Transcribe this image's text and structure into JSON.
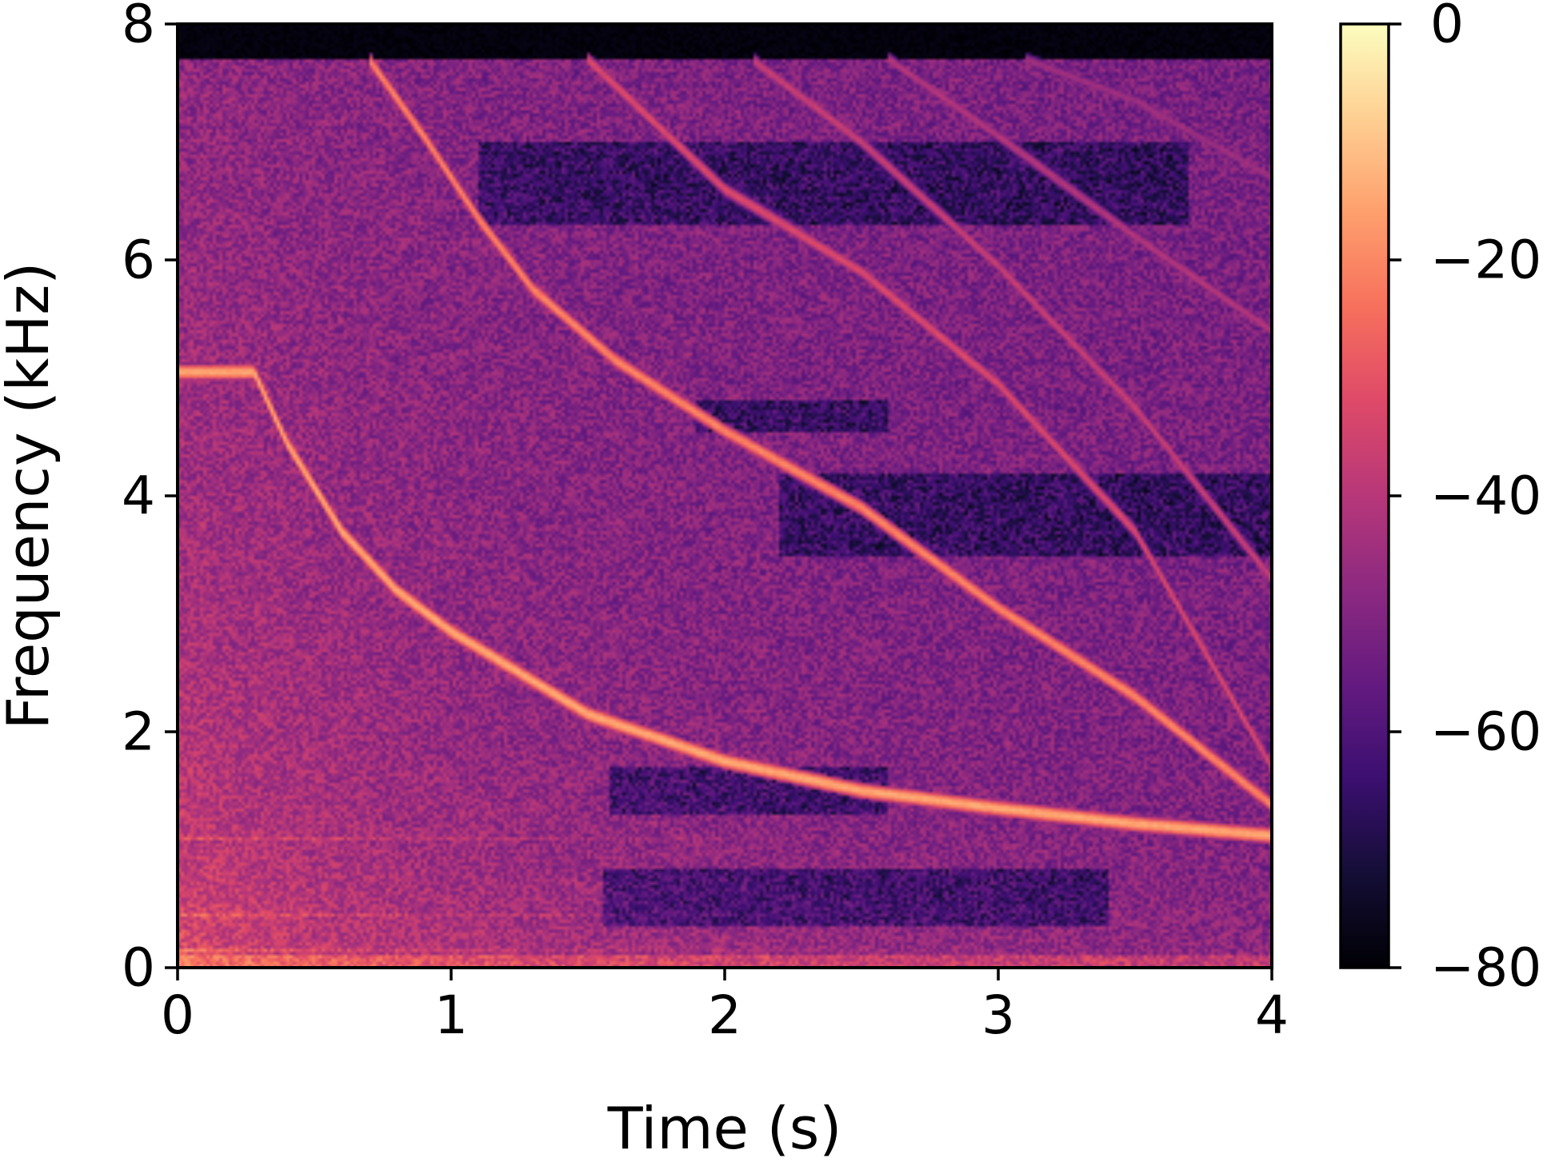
{
  "chart_data": {
    "type": "heatmap",
    "subtype": "spectrogram",
    "title": "",
    "xlabel": "Time (s)",
    "ylabel": "Frequency (kHz)",
    "xlim": [
      0,
      4
    ],
    "ylim": [
      0,
      8
    ],
    "x_ticks": [
      0,
      1,
      2,
      3,
      4
    ],
    "x_tick_labels": [
      "0",
      "1",
      "2",
      "3",
      "4"
    ],
    "y_ticks": [
      0,
      2,
      4,
      6,
      8
    ],
    "y_tick_labels": [
      "0",
      "2",
      "4",
      "6",
      "8"
    ],
    "colormap": "magma",
    "colorbar": {
      "range": [
        -80,
        0
      ],
      "ticks": [
        0,
        -20,
        -40,
        -60,
        -80
      ],
      "tick_labels": [
        "0",
        "−20",
        "−40",
        "−60",
        "−80"
      ]
    },
    "grid": false,
    "noise_floor_db": -52,
    "spectrum_cutoff_khz": 7.7,
    "sweeps": [
      {
        "name": "",
        "points": [
          [
            0,
            5.05
          ],
          [
            0.28,
            5.05
          ],
          [
            0.4,
            4.45
          ],
          [
            0.6,
            3.7
          ],
          [
            0.8,
            3.2
          ],
          [
            1.0,
            2.85
          ],
          [
            1.5,
            2.15
          ],
          [
            2.0,
            1.75
          ],
          [
            2.5,
            1.5
          ],
          [
            3.0,
            1.35
          ],
          [
            3.5,
            1.22
          ],
          [
            4.0,
            1.12
          ]
        ],
        "db": -14
      },
      {
        "name": "",
        "points": [
          [
            0.7,
            7.7
          ],
          [
            0.9,
            7.05
          ],
          [
            1.1,
            6.35
          ],
          [
            1.3,
            5.75
          ],
          [
            1.6,
            5.15
          ],
          [
            2.0,
            4.55
          ],
          [
            2.5,
            3.9
          ],
          [
            3.0,
            3.05
          ],
          [
            3.5,
            2.3
          ],
          [
            4.0,
            1.38
          ]
        ],
        "db": -20
      },
      {
        "name": "",
        "points": [
          [
            1.5,
            7.7
          ],
          [
            2.0,
            6.6
          ],
          [
            2.5,
            5.9
          ],
          [
            3.0,
            4.95
          ],
          [
            3.5,
            3.7
          ],
          [
            4.0,
            1.7
          ]
        ],
        "db": -32
      },
      {
        "name": "",
        "points": [
          [
            2.1,
            7.7
          ],
          [
            2.5,
            7.0
          ],
          [
            3.0,
            5.95
          ],
          [
            3.5,
            4.75
          ],
          [
            4.0,
            3.3
          ]
        ],
        "db": -36
      },
      {
        "name": "",
        "points": [
          [
            2.6,
            7.7
          ],
          [
            3.0,
            7.05
          ],
          [
            3.5,
            6.2
          ],
          [
            4.0,
            5.4
          ]
        ],
        "db": -40
      },
      {
        "name": "",
        "points": [
          [
            3.1,
            7.7
          ],
          [
            3.5,
            7.35
          ],
          [
            4.0,
            6.7
          ]
        ],
        "db": -44
      }
    ],
    "low_frequency_lines_khz": [
      1.1,
      0.45,
      0.15
    ],
    "quiet_regions": [
      {
        "t": [
          1.58,
          2.6
        ],
        "f": [
          1.3,
          1.7
        ]
      },
      {
        "t": [
          1.55,
          3.4
        ],
        "f": [
          0.35,
          0.85
        ]
      },
      {
        "t": [
          1.9,
          2.6
        ],
        "f": [
          4.55,
          4.8
        ]
      },
      {
        "t": [
          1.1,
          3.7
        ],
        "f": [
          6.3,
          7.0
        ]
      },
      {
        "t": [
          2.2,
          4.0
        ],
        "f": [
          3.5,
          4.2
        ]
      }
    ]
  }
}
